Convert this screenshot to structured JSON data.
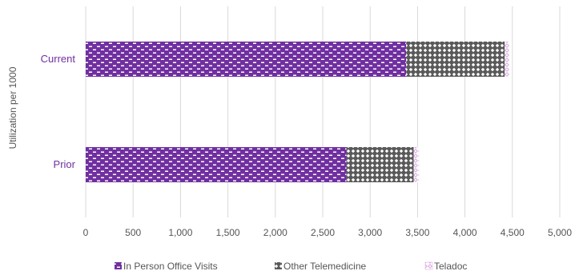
{
  "chart_data": {
    "type": "bar",
    "orientation": "horizontal",
    "stacked": true,
    "categories": [
      "Current",
      "Prior"
    ],
    "series": [
      {
        "name": "In Person Office Visits",
        "values": [
          3380,
          2750
        ],
        "color": "#7030A0",
        "pattern": "brick"
      },
      {
        "name": "Other Telemedicine",
        "values": [
          1040,
          710
        ],
        "color": "#404040",
        "pattern": "diamond"
      },
      {
        "name": "Teladoc",
        "values": [
          50,
          55
        ],
        "color": "#D9A6E0",
        "pattern": "light-diamond"
      }
    ],
    "xlim": [
      0,
      5000
    ],
    "xticks": [
      0,
      500,
      1000,
      1500,
      2000,
      2500,
      3000,
      3500,
      4000,
      4500,
      5000
    ],
    "xtick_labels": [
      "0",
      "500",
      "1,000",
      "1,500",
      "2,000",
      "2,500",
      "3,000",
      "3,500",
      "4,000",
      "4,500",
      "5,000"
    ],
    "ylabel": "Utilization per 1000",
    "xlabel": "",
    "title": "",
    "grid": "vertical",
    "legend": "bottom",
    "category_label_color": "#7030A0"
  }
}
